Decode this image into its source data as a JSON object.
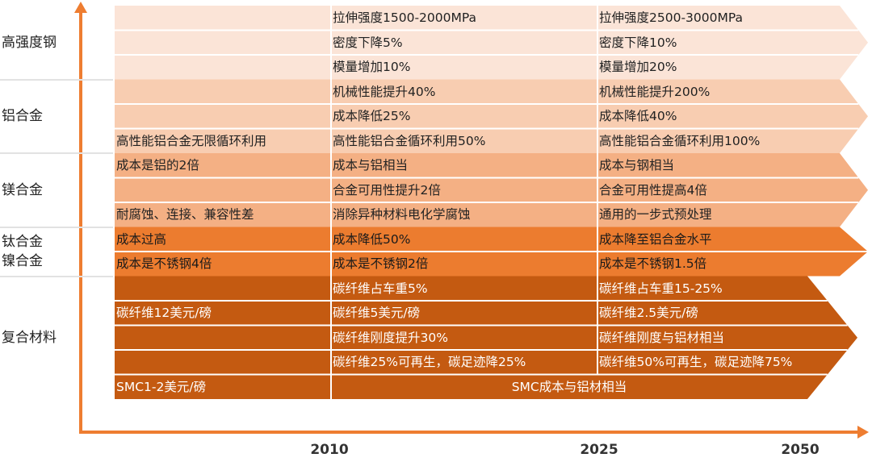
{
  "colors": {
    "axis": "#ee7d31",
    "steel": "#fbe4d7",
    "aluminum": "#f8cdb1",
    "magnesium": "#f4b084",
    "titanium": "#ec7c2f",
    "composite": "#c45a11",
    "divider": "#ffffff"
  },
  "years": [
    "2010",
    "2025",
    "2050"
  ],
  "categories": [
    {
      "id": "steel",
      "label_lines": [
        "高强度钢"
      ],
      "color_key": "steel",
      "text_color": "#222222",
      "rows": [
        {
          "c1": "",
          "c2": "拉伸强度1500-2000MPa",
          "c3": "拉伸强度2500-3000MPa"
        },
        {
          "c1": "",
          "c2": "密度下降5%",
          "c3": "密度下降10%"
        },
        {
          "c1": "",
          "c2": "模量增加10%",
          "c3": "模量增加20%"
        }
      ]
    },
    {
      "id": "aluminum",
      "label_lines": [
        "铝合金"
      ],
      "color_key": "aluminum",
      "text_color": "#222222",
      "rows": [
        {
          "c1": "",
          "c2": "机械性能提升40%",
          "c3": "机械性能提升200%"
        },
        {
          "c1": "",
          "c2": "成本降低25%",
          "c3": "成本降低40%"
        },
        {
          "c1": "高性能铝合金无限循环利用",
          "c2": "高性能铝合金循环利用50%",
          "c3": "高性能铝合金循环利用100%"
        }
      ]
    },
    {
      "id": "magnesium",
      "label_lines": [
        "镁合金"
      ],
      "color_key": "magnesium",
      "text_color": "#222222",
      "rows": [
        {
          "c1": "成本是铝的2倍",
          "c2": "成本与铝相当",
          "c3": "成本与钢相当"
        },
        {
          "c1": "",
          "c2": "合金可用性提升2倍",
          "c3": "合金可用性提高4倍"
        },
        {
          "c1": "耐腐蚀、连接、兼容性差",
          "c2": "消除异种材料电化学腐蚀",
          "c3": "通用的一步式预处理"
        }
      ]
    },
    {
      "id": "titanium",
      "label_lines": [
        "钛合金",
        "镍合金"
      ],
      "color_key": "titanium",
      "text_color": "#1a1a1a",
      "rows": [
        {
          "c1": "成本过高",
          "c2": "成本降低50%",
          "c3": "成本降至铝合金水平"
        },
        {
          "c1": "成本是不锈钢4倍",
          "c2": "成本是不锈钢2倍",
          "c3": "成本是不锈钢1.5倍"
        }
      ]
    },
    {
      "id": "composite",
      "label_lines": [
        "复合材料"
      ],
      "color_key": "composite",
      "text_color": "#ffffff",
      "rows": [
        {
          "c1": "",
          "c2": "碳纤维占车重5%",
          "c3": "碳纤维占车重15-25%"
        },
        {
          "c1": "碳纤维12美元/磅",
          "c2": "碳纤维5美元/磅",
          "c3": "碳纤维2.5美元/磅"
        },
        {
          "c1": "",
          "c2": "碳纤维刚度提升30%",
          "c3": "碳纤维刚度与铝材相当"
        },
        {
          "c1": "",
          "c2": "碳纤维25%可再生，碳足迹降25%",
          "c3": "碳纤维50%可再生，碳足迹降75%"
        },
        {
          "c1": "SMC1-2美元/磅",
          "c23_merged": "SMC成本与铝材相当"
        }
      ]
    }
  ]
}
